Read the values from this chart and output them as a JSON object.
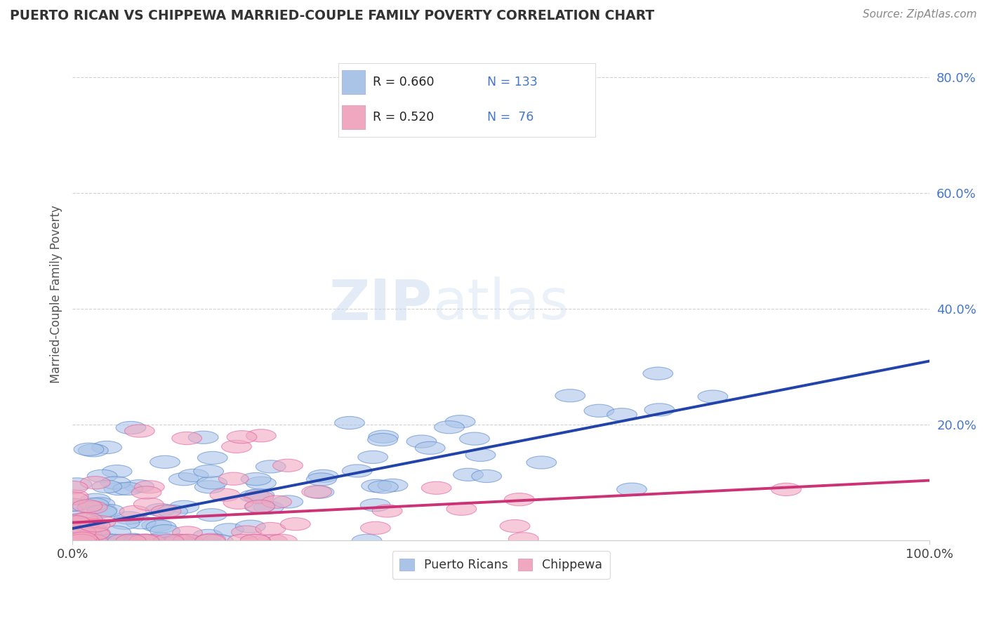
{
  "title": "PUERTO RICAN VS CHIPPEWA MARRIED-COUPLE FAMILY POVERTY CORRELATION CHART",
  "source_text": "Source: ZipAtlas.com",
  "ylabel": "Married-Couple Family Poverty",
  "xlim": [
    0,
    100
  ],
  "ylim": [
    0,
    85
  ],
  "xtick_positions": [
    0,
    100
  ],
  "xtick_labels": [
    "0.0%",
    "100.0%"
  ],
  "ytick_positions": [
    0,
    20,
    40,
    60,
    80
  ],
  "ytick_labels": [
    "",
    "20.0%",
    "40.0%",
    "60.0%",
    "80.0%"
  ],
  "blue_color": "#aac4e8",
  "pink_color": "#f0a8c0",
  "blue_edge_color": "#5588cc",
  "pink_edge_color": "#e060a0",
  "blue_line_color": "#2244aa",
  "pink_line_color": "#cc3377",
  "R_blue": 0.66,
  "N_blue": 133,
  "R_pink": 0.52,
  "N_pink": 76,
  "legend_label_blue": "Puerto Ricans",
  "legend_label_pink": "Chippewa",
  "watermark": "ZIPatlas",
  "background_color": "#ffffff",
  "grid_color": "#cccccc",
  "title_color": "#333333",
  "source_color": "#888888",
  "ytick_color": "#4477cc",
  "blue_line_slope": 0.33,
  "blue_line_intercept": 0.5,
  "pink_line_slope": 0.195,
  "pink_line_intercept": 0.5
}
